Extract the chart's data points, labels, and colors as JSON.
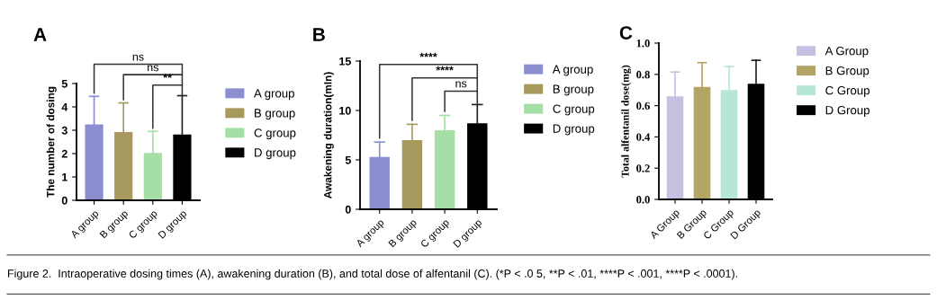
{
  "chart_data": [
    {
      "type": "bar",
      "title": "A",
      "ylabel": "The number of dosing",
      "categories": [
        "A group",
        "B group",
        "C group",
        "D group"
      ],
      "series": [
        {
          "name": "A group",
          "color": "#8b8fd0",
          "values": [
            3.25,
            null,
            null,
            null
          ],
          "errors": [
            [
              3.25,
              4.45
            ],
            null,
            null,
            null
          ]
        },
        {
          "name": "B group",
          "color": "#a89a5e",
          "values": [
            null,
            2.92,
            null,
            null
          ],
          "errors": [
            null,
            [
              2.92,
              4.17
            ],
            null,
            null
          ]
        },
        {
          "name": "C group",
          "color": "#a6dfa6",
          "values": [
            null,
            null,
            2.03,
            null
          ],
          "errors": [
            null,
            null,
            [
              2.03,
              2.95
            ],
            null
          ]
        },
        {
          "name": "D group",
          "color": "#000000",
          "values": [
            null,
            null,
            null,
            2.82
          ],
          "errors": [
            null,
            null,
            null,
            [
              2.82,
              4.48
            ]
          ]
        }
      ],
      "ylim": [
        0,
        5
      ],
      "yticks": [
        0,
        1,
        2,
        3,
        4,
        5
      ],
      "legend": "right",
      "grid": false,
      "annotations": [
        "ns",
        "ns",
        "**"
      ]
    },
    {
      "type": "bar",
      "title": "B",
      "ylabel": "Awakening duration(mIn)",
      "categories": [
        "A group",
        "B group",
        "C group",
        "D group"
      ],
      "series": [
        {
          "name": "A group",
          "color": "#8b8fd0",
          "values": [
            5.3,
            null,
            null,
            null
          ],
          "errors": [
            [
              5.3,
              6.8
            ],
            null,
            null,
            null
          ]
        },
        {
          "name": "B group",
          "color": "#a89a5e",
          "values": [
            null,
            7.0,
            null,
            null
          ],
          "errors": [
            null,
            [
              7.0,
              8.6
            ],
            null,
            null
          ]
        },
        {
          "name": "C group",
          "color": "#a6dfa6",
          "values": [
            null,
            null,
            8.0,
            null
          ],
          "errors": [
            null,
            null,
            [
              8.0,
              9.5
            ],
            null
          ]
        },
        {
          "name": "D group",
          "color": "#000000",
          "values": [
            null,
            null,
            null,
            8.7
          ],
          "errors": [
            null,
            null,
            null,
            [
              8.7,
              10.6
            ]
          ]
        }
      ],
      "ylim": [
        0,
        15
      ],
      "yticks": [
        0,
        5,
        10,
        15
      ],
      "legend": "right",
      "grid": false,
      "annotations": [
        "****",
        "****",
        "ns"
      ]
    },
    {
      "type": "bar",
      "title": "C",
      "ylabel": "Total alfentanil dose(mg)",
      "categories": [
        "A Group",
        "B Group",
        "C Group",
        "D Group"
      ],
      "series": [
        {
          "name": "A Group",
          "color": "#c8c0e0",
          "values": [
            0.66,
            null,
            null,
            null
          ],
          "errors": [
            [
              0.66,
              0.815
            ],
            null,
            null,
            null
          ]
        },
        {
          "name": "B Group",
          "color": "#b3a563",
          "values": [
            null,
            0.72,
            null,
            null
          ],
          "errors": [
            null,
            [
              0.72,
              0.875
            ],
            null,
            null
          ]
        },
        {
          "name": "C Group",
          "color": "#b5e6d8",
          "values": [
            null,
            null,
            0.7,
            null
          ],
          "errors": [
            null,
            null,
            [
              0.7,
              0.85
            ],
            null
          ]
        },
        {
          "name": "D Group",
          "color": "#000000",
          "values": [
            null,
            null,
            null,
            0.74
          ],
          "errors": [
            null,
            null,
            null,
            [
              0.74,
              0.89
            ]
          ]
        }
      ],
      "ylim": [
        0,
        1.0
      ],
      "yticks": [
        {
          "value": 0,
          "label": "0.0"
        },
        0.2,
        0.4,
        0.6,
        0.8,
        {
          "value": 1.0,
          "label": "1.0"
        }
      ],
      "legend": "right",
      "grid": false
    },
    {
      "type": "other",
      "annotations": [
        "Figure 2.  Intraoperative dosing times (A), awakening duration (B), and total dose of alfentanil (C). (*P < .0 5, **P < .01, ****P < .001, ****P < .0001)."
      ]
    }
  ]
}
